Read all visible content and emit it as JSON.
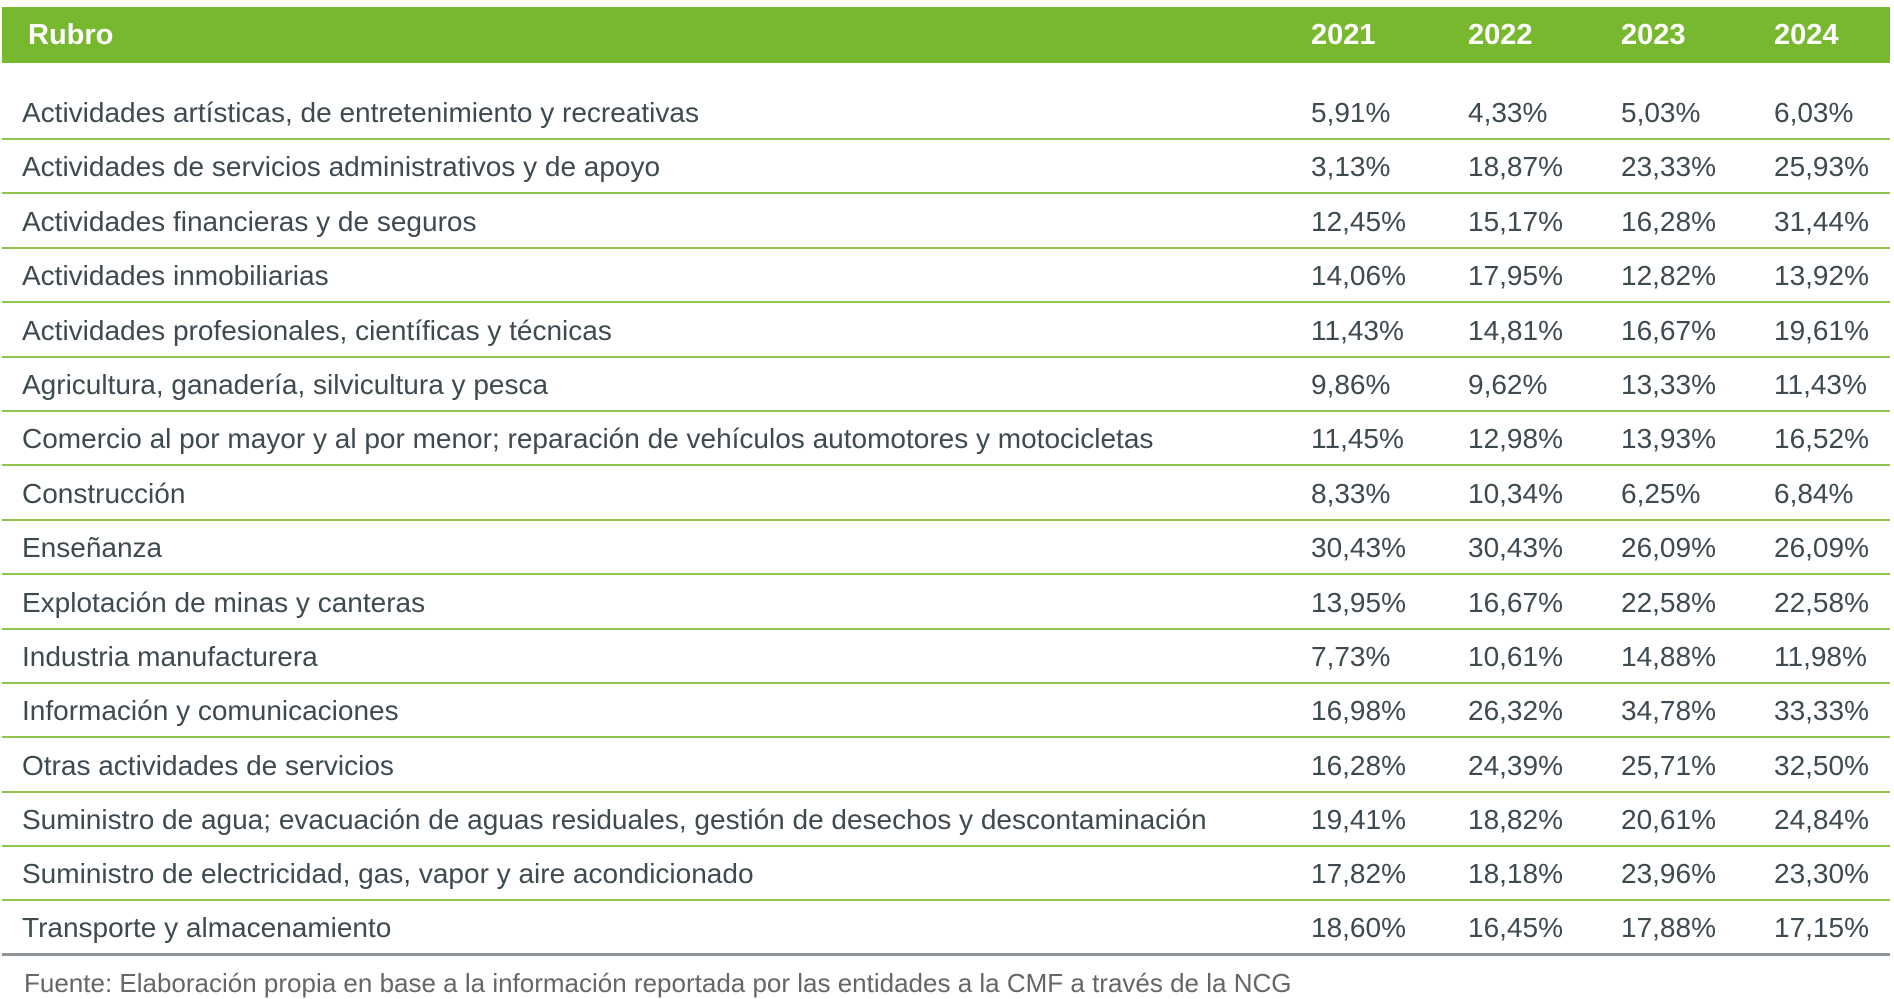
{
  "header": {
    "rubro": "Rubro",
    "years": [
      "2021",
      "2022",
      "2023",
      "2024"
    ]
  },
  "rows": [
    {
      "rubro": "Actividades artísticas, de entretenimiento y recreativas",
      "v": [
        "5,91%",
        "4,33%",
        "5,03%",
        "6,03%"
      ]
    },
    {
      "rubro": "Actividades de servicios administrativos y de apoyo",
      "v": [
        "3,13%",
        "18,87%",
        "23,33%",
        "25,93%"
      ]
    },
    {
      "rubro": "Actividades financieras y de seguros",
      "v": [
        "12,45%",
        "15,17%",
        "16,28%",
        "31,44%"
      ]
    },
    {
      "rubro": "Actividades inmobiliarias",
      "v": [
        "14,06%",
        "17,95%",
        "12,82%",
        "13,92%"
      ]
    },
    {
      "rubro": "Actividades profesionales, científicas y técnicas",
      "v": [
        "11,43%",
        "14,81%",
        "16,67%",
        "19,61%"
      ]
    },
    {
      "rubro": "Agricultura, ganadería, silvicultura y pesca",
      "v": [
        "9,86%",
        "9,62%",
        "13,33%",
        "11,43%"
      ]
    },
    {
      "rubro": "Comercio al por mayor y al por menor; reparación de vehículos automotores y motocicletas",
      "v": [
        "11,45%",
        "12,98%",
        "13,93%",
        "16,52%"
      ]
    },
    {
      "rubro": "Construcción",
      "v": [
        "8,33%",
        "10,34%",
        "6,25%",
        "6,84%"
      ]
    },
    {
      "rubro": "Enseñanza",
      "v": [
        "30,43%",
        "30,43%",
        "26,09%",
        "26,09%"
      ]
    },
    {
      "rubro": "Explotación de minas y canteras",
      "v": [
        "13,95%",
        "16,67%",
        "22,58%",
        "22,58%"
      ]
    },
    {
      "rubro": "Industria manufacturera",
      "v": [
        "7,73%",
        "10,61%",
        "14,88%",
        "11,98%"
      ]
    },
    {
      "rubro": "Información y comunicaciones",
      "v": [
        "16,98%",
        "26,32%",
        "34,78%",
        "33,33%"
      ]
    },
    {
      "rubro": "Otras actividades de servicios",
      "v": [
        "16,28%",
        "24,39%",
        "25,71%",
        "32,50%"
      ]
    },
    {
      "rubro": "Suministro de agua; evacuación de aguas residuales, gestión de desechos y descontaminación",
      "v": [
        "19,41%",
        "18,82%",
        "20,61%",
        "24,84%"
      ]
    },
    {
      "rubro": "Suministro de electricidad, gas, vapor y aire acondicionado",
      "v": [
        "17,82%",
        "18,18%",
        "23,96%",
        "23,30%"
      ]
    },
    {
      "rubro": "Transporte y almacenamiento",
      "v": [
        "18,60%",
        "16,45%",
        "17,88%",
        "17,15%"
      ]
    }
  ],
  "footnote": "Fuente: Elaboración propia en base a la información reportada por las entidades a la CMF a través de la NCG"
}
